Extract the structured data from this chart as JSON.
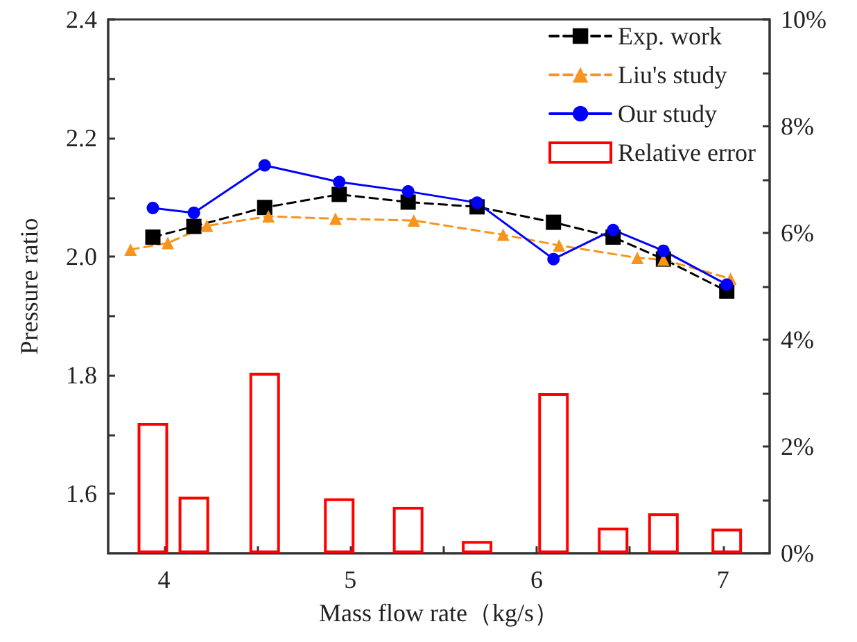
{
  "chart_data": {
    "type": "line",
    "xlabel": "Mass flow rate（kg/s）",
    "ylabel": "Pressure ratio",
    "xlim": [
      3.7,
      7.25
    ],
    "xticks": [
      4,
      {
        "value": 4.5,
        "label": null
      },
      5,
      {
        "value": 5.5,
        "label": null
      },
      6,
      {
        "value": 6.5,
        "label": null
      },
      7
    ],
    "ylim": [
      1.5,
      2.4
    ],
    "yticks": [
      {
        "value": 1.6,
        "label": "1.6"
      },
      {
        "value": 1.7,
        "label": null
      },
      {
        "value": 1.8,
        "label": "1.8"
      },
      {
        "value": 1.9,
        "label": null
      },
      {
        "value": 2.0,
        "label": "2.0"
      },
      {
        "value": 2.1,
        "label": null
      },
      {
        "value": 2.2,
        "label": "2.2"
      },
      {
        "value": 2.3,
        "label": null
      },
      {
        "value": 2.4,
        "label": "2.4"
      }
    ],
    "y2lim": [
      0,
      10
    ],
    "y2ticks": [
      {
        "value": 0,
        "label": "0%"
      },
      {
        "value": 1,
        "label": null
      },
      {
        "value": 2,
        "label": "2%"
      },
      {
        "value": 3,
        "label": null
      },
      {
        "value": 4,
        "label": "4%"
      },
      {
        "value": 5,
        "label": null
      },
      {
        "value": 6,
        "label": "6%"
      },
      {
        "value": 7,
        "label": null
      },
      {
        "value": 8,
        "label": "8%"
      },
      {
        "value": 9,
        "label": null
      },
      {
        "value": 10,
        "label": "10%"
      }
    ],
    "legend": "top right",
    "grid": false,
    "series": [
      {
        "name": "Exp. work",
        "color": "#000000",
        "marker": "square",
        "line_style": "dashed",
        "x": [
          3.94,
          4.16,
          4.54,
          4.94,
          5.31,
          5.68,
          6.09,
          6.41,
          6.68,
          7.02
        ],
        "values": [
          2.033,
          2.051,
          2.083,
          2.105,
          2.092,
          2.084,
          2.058,
          2.033,
          1.996,
          1.942
        ]
      },
      {
        "name": "Liu's study",
        "color": "#f7941d",
        "marker": "triangle",
        "line_style": "dashed",
        "x": [
          3.82,
          4.02,
          4.23,
          4.56,
          4.92,
          5.34,
          5.82,
          6.12,
          6.54,
          6.68,
          7.04
        ],
        "values": [
          2.012,
          2.023,
          2.052,
          2.068,
          2.064,
          2.061,
          2.037,
          2.019,
          1.998,
          1.995,
          1.963
        ]
      },
      {
        "name": "Our study",
        "color": "#0000ff",
        "marker": "circle",
        "line_style": "solid",
        "x": [
          3.94,
          4.16,
          4.54,
          4.94,
          5.31,
          5.68,
          6.09,
          6.41,
          6.68,
          7.02
        ],
        "values": [
          2.082,
          2.074,
          2.154,
          2.126,
          2.11,
          2.091,
          1.996,
          2.045,
          2.01,
          1.953
        ]
      },
      {
        "name": "Relative error",
        "type": "bar",
        "axis": "y2",
        "color": "#ff0000",
        "x": [
          3.94,
          4.16,
          4.54,
          4.94,
          5.31,
          5.68,
          6.09,
          6.41,
          6.68,
          7.02
        ],
        "values": [
          2.44,
          1.06,
          3.38,
          1.03,
          0.87,
          0.23,
          3.0,
          0.48,
          0.75,
          0.46
        ]
      }
    ]
  }
}
